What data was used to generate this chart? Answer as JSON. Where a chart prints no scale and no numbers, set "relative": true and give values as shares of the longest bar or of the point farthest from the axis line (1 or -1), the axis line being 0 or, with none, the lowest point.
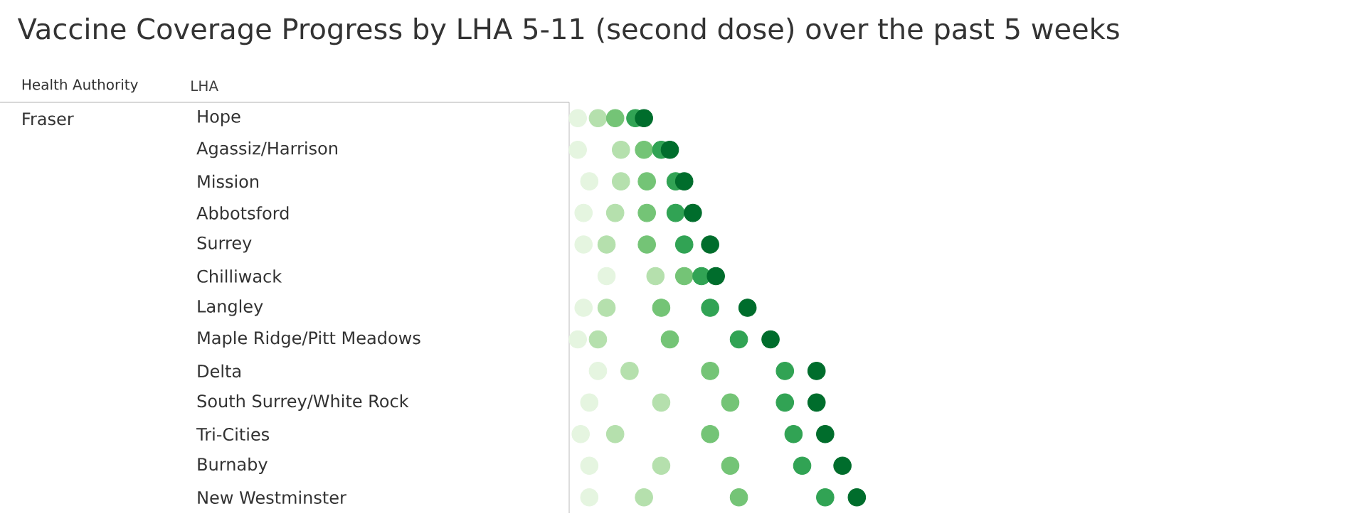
{
  "chart_data": {
    "type": "scatter",
    "orientation": "horizontal",
    "relative": true,
    "marker": "circle",
    "title": "Vaccine Coverage Progress by LHA 5-11 (second dose) over the past 5 weeks",
    "ylabel": "LHA",
    "annotations": [
      "Health Authority",
      "Fraser"
    ],
    "categories": [
      "Hope",
      "Agassiz/Harrison",
      "Mission",
      "Abbotsford",
      "Surrey",
      "Chilliwack",
      "Langley",
      "Maple Ridge/Pitt Meadows",
      "Delta",
      "South Surrey/White Rock",
      "Tri-Cities",
      "Burnaby",
      "New Westminster"
    ],
    "series": [
      {
        "color": "#e5f5e0",
        "values": [
          0.03,
          0.03,
          0.07,
          0.05,
          0.05,
          0.13,
          0.05,
          0.03,
          0.1,
          0.07,
          0.04,
          0.07,
          0.07
        ]
      },
      {
        "color": "#b5e0ad",
        "values": [
          0.1,
          0.18,
          0.18,
          0.16,
          0.13,
          0.3,
          0.13,
          0.1,
          0.21,
          0.32,
          0.16,
          0.32,
          0.26
        ]
      },
      {
        "color": "#74c476",
        "values": [
          0.16,
          0.26,
          0.27,
          0.27,
          0.27,
          0.4,
          0.32,
          0.35,
          0.49,
          0.56,
          0.49,
          0.56,
          0.59
        ]
      },
      {
        "color": "#31a354",
        "values": [
          0.23,
          0.32,
          0.37,
          0.37,
          0.4,
          0.46,
          0.49,
          0.59,
          0.75,
          0.75,
          0.78,
          0.81,
          0.89
        ]
      },
      {
        "color": "#006d2c",
        "values": [
          0.26,
          0.35,
          0.4,
          0.43,
          0.49,
          0.51,
          0.62,
          0.7,
          0.86,
          0.86,
          0.89,
          0.95,
          1
        ]
      }
    ]
  }
}
